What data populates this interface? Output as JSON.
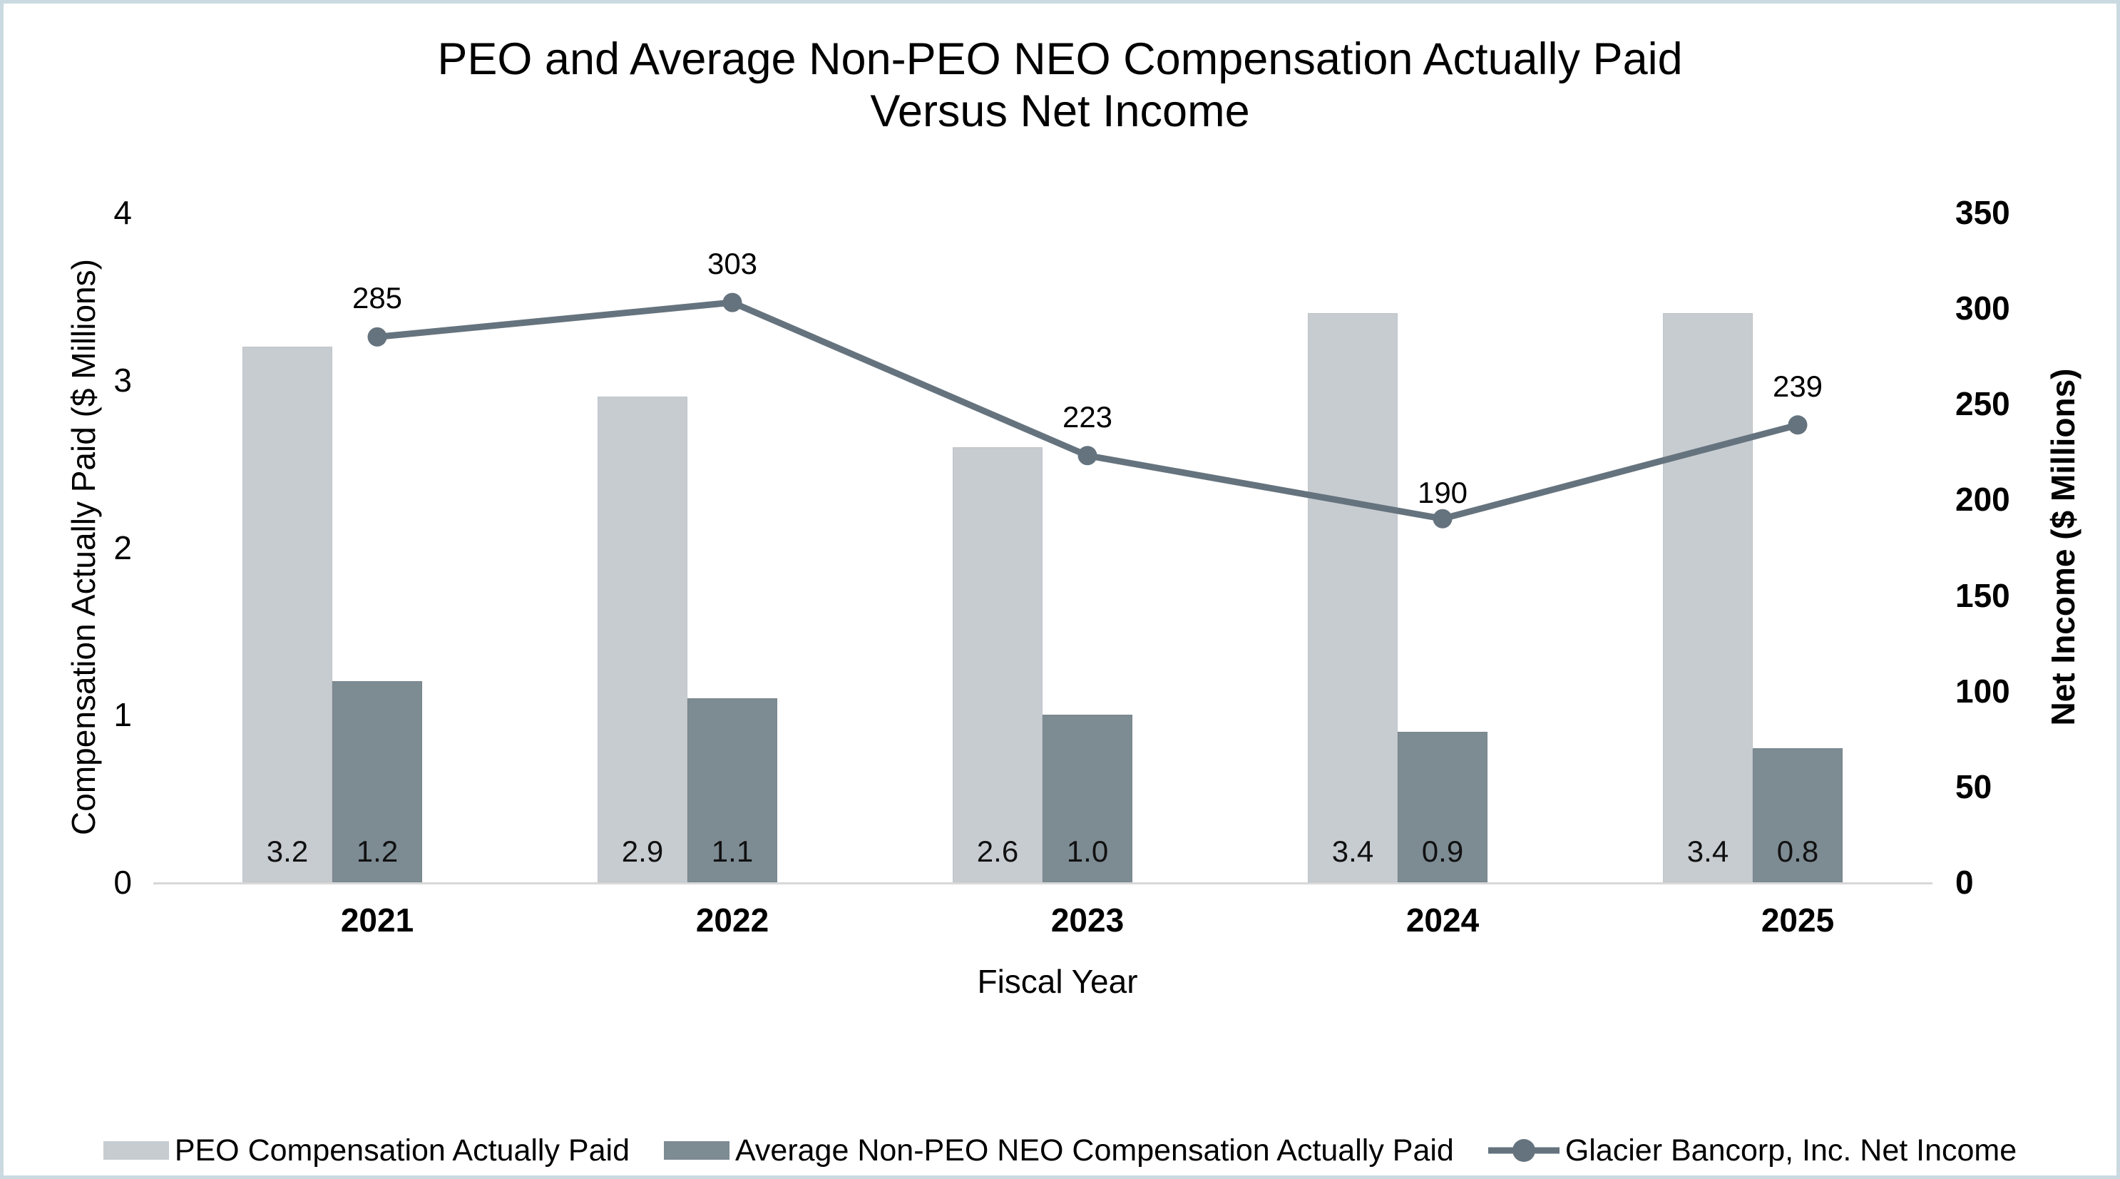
{
  "title": {
    "line1": "PEO and Average Non-PEO NEO Compensation Actually Paid",
    "line2": "Versus Net Income"
  },
  "chart_data": {
    "type": "combo-bar-line",
    "categories": [
      "2021",
      "2022",
      "2023",
      "2024",
      "2025"
    ],
    "x_axis_label": "Fiscal Year",
    "left_axis": {
      "title": "Compensation Actually Paid ($ Millions)",
      "min": 0,
      "max": 4,
      "ticks": [
        4,
        3,
        2,
        1,
        0
      ]
    },
    "right_axis": {
      "title": "Net Income ($ Millions)",
      "min": 0,
      "max": 350,
      "ticks": [
        350,
        300,
        250,
        200,
        150,
        100,
        50,
        0
      ]
    },
    "grid": false,
    "legend_position": "bottom",
    "series": [
      {
        "name": "PEO Compensation Actually Paid",
        "chart_type": "bar",
        "axis": "left",
        "color": "#c7ccd1",
        "values": [
          3.2,
          2.9,
          2.6,
          3.4,
          3.4
        ],
        "data_labels": [
          "3.2",
          "2.9",
          "2.6",
          "3.4",
          "3.4"
        ]
      },
      {
        "name": "Average Non-PEO NEO Compensation Actually Paid",
        "chart_type": "bar",
        "axis": "left",
        "color": "#7d8b93",
        "values": [
          1.2,
          1.1,
          1.0,
          0.9,
          0.8
        ],
        "data_labels": [
          "1.2",
          "1.1",
          "1.0",
          "0.9",
          "0.8"
        ]
      },
      {
        "name": "Glacier Bancorp, Inc. Net Income",
        "chart_type": "line",
        "axis": "right",
        "color": "#65737e",
        "values": [
          285,
          303,
          223,
          190,
          239
        ],
        "data_labels": [
          "285",
          "303",
          "223",
          "190",
          "239"
        ]
      }
    ]
  },
  "frame": {
    "background": "#ffffff",
    "border_color": "#cbdae1",
    "baseline_color": "#d8d8d8"
  }
}
